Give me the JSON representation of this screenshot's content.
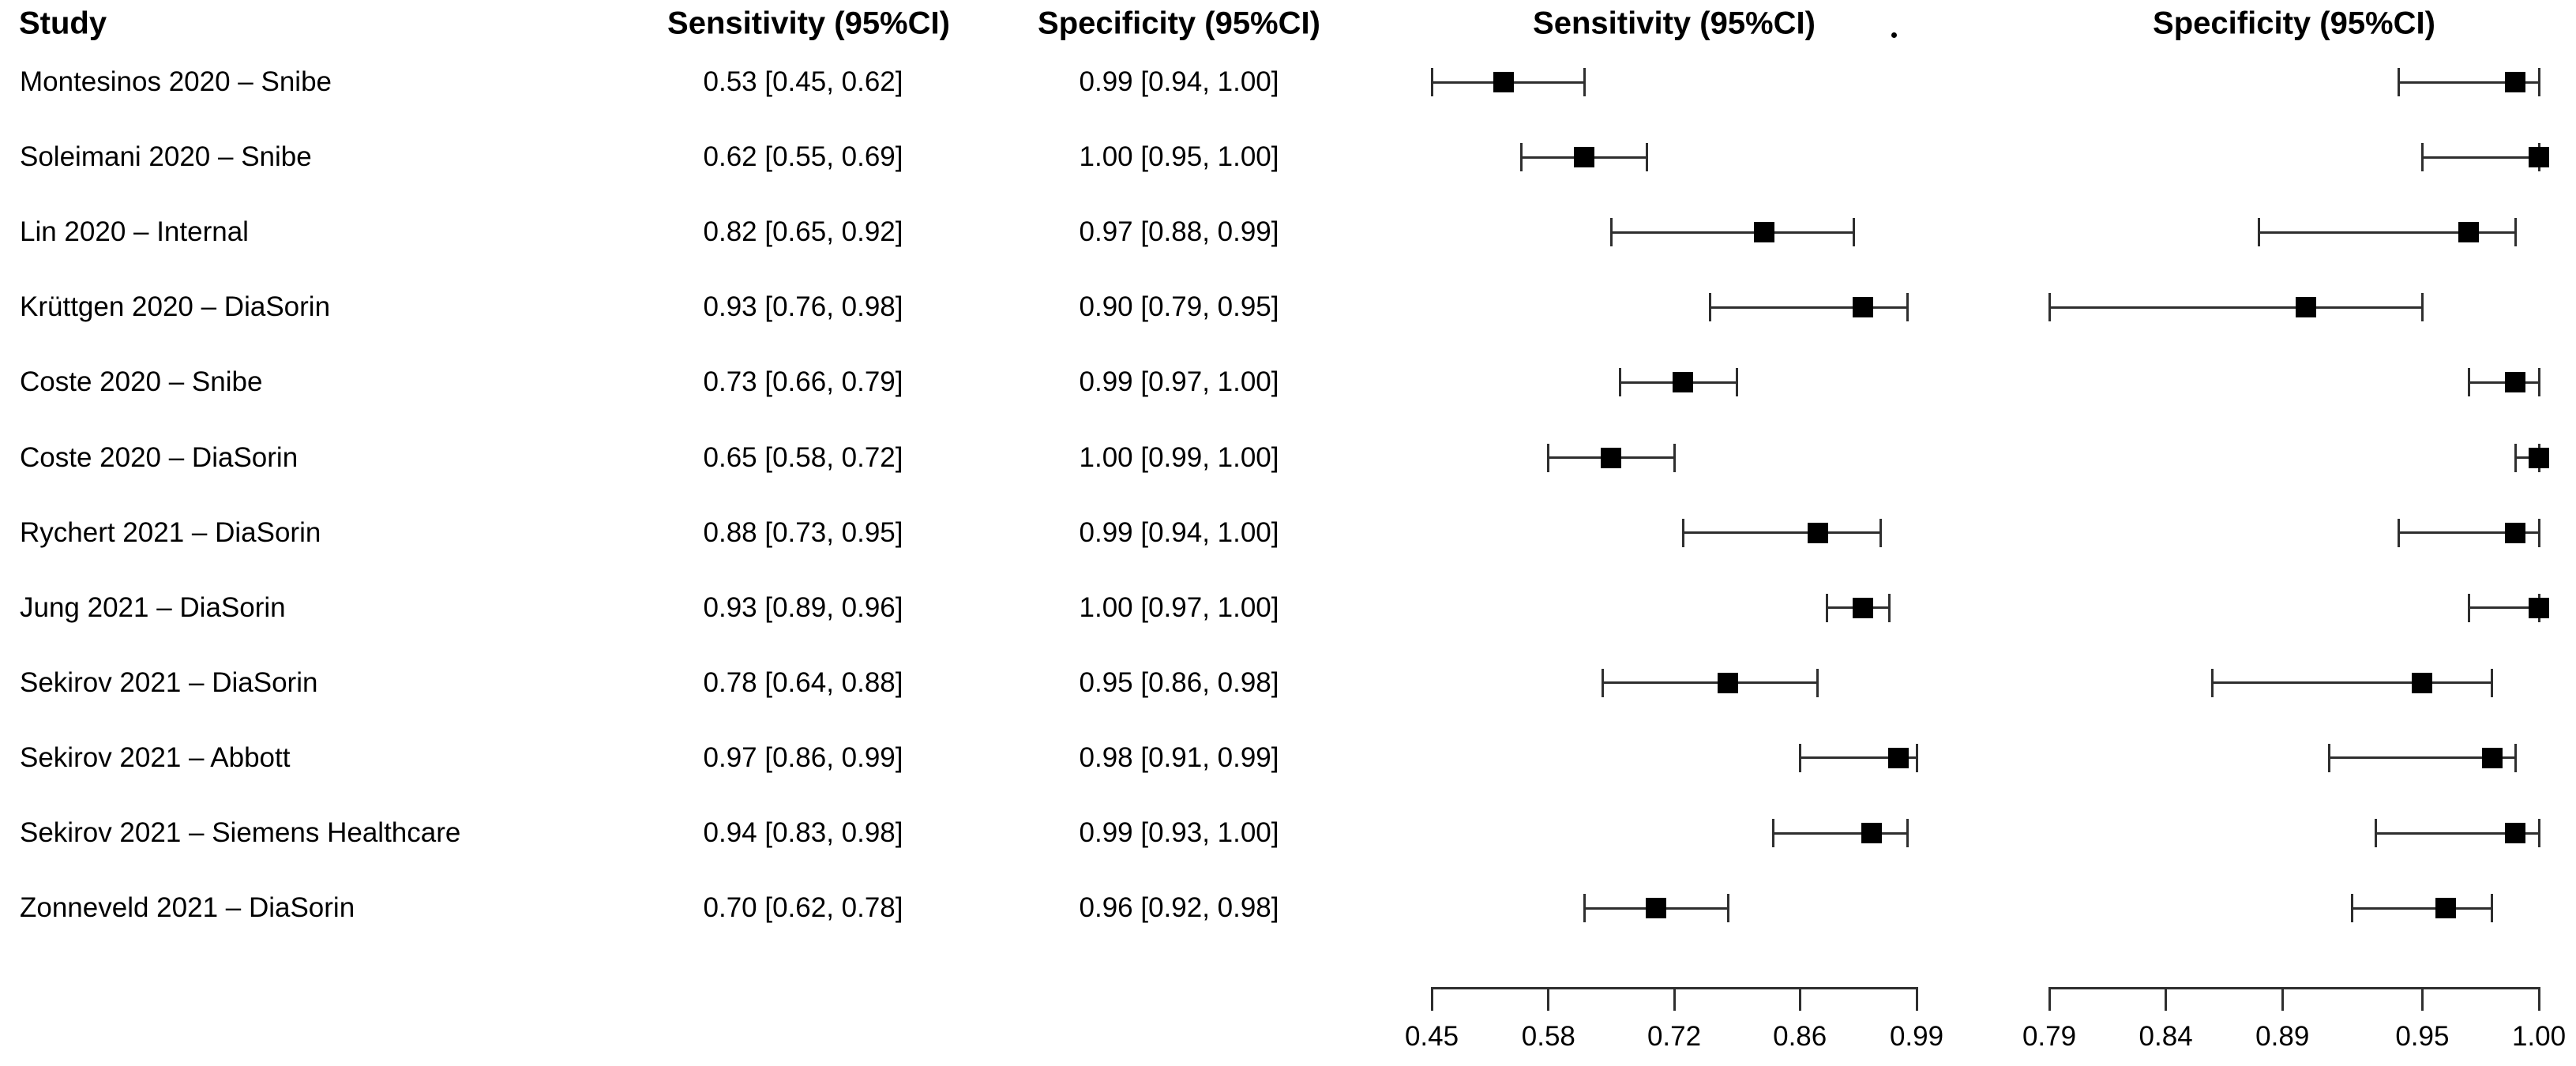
{
  "page": {
    "background": "#ffffff"
  },
  "columns": {
    "study_header": "Study",
    "sensitivity_header": "Sensitivity (95%CI)",
    "specificity_header": "Specificity (95%CI)",
    "sensitivity_plot_header": "Sensitivity (95%CI)",
    "specificity_plot_header": "Specificity (95%CI)",
    "stray_dot": "."
  },
  "colors": {
    "text": "#000000",
    "ci_line": "#2e2e2e",
    "marker": "#000000",
    "background": "#ffffff"
  },
  "chart_data": {
    "type": "forest",
    "title": "",
    "description": "Paired forest plot of diagnostic sensitivity and specificity with 95% confidence intervals per study",
    "legend_position": "none",
    "grid": false,
    "columns": [
      "Study",
      "Sensitivity (95%CI)",
      "Specificity (95%CI)",
      "Sensitivity (95%CI)",
      "Specificity (95%CI)"
    ],
    "rows": [
      {
        "study": "Montesinos 2020 – Snibe",
        "sensitivity": {
          "label": "0.53 [0.45, 0.62]",
          "est": 0.53,
          "lo": 0.45,
          "hi": 0.62
        },
        "specificity": {
          "label": "0.99 [0.94, 1.00]",
          "est": 0.99,
          "lo": 0.94,
          "hi": 1.0
        }
      },
      {
        "study": "Soleimani 2020 – Snibe",
        "sensitivity": {
          "label": "0.62 [0.55, 0.69]",
          "est": 0.62,
          "lo": 0.55,
          "hi": 0.69
        },
        "specificity": {
          "label": "1.00 [0.95, 1.00]",
          "est": 1.0,
          "lo": 0.95,
          "hi": 1.0
        }
      },
      {
        "study": "Lin 2020 – Internal",
        "sensitivity": {
          "label": "0.82 [0.65, 0.92]",
          "est": 0.82,
          "lo": 0.65,
          "hi": 0.92
        },
        "specificity": {
          "label": "0.97 [0.88, 0.99]",
          "est": 0.97,
          "lo": 0.88,
          "hi": 0.99
        }
      },
      {
        "study": "Krüttgen 2020 – DiaSorin",
        "sensitivity": {
          "label": "0.93 [0.76, 0.98]",
          "est": 0.93,
          "lo": 0.76,
          "hi": 0.98
        },
        "specificity": {
          "label": "0.90 [0.79, 0.95]",
          "est": 0.9,
          "lo": 0.79,
          "hi": 0.95
        }
      },
      {
        "study": "Coste 2020 – Snibe",
        "sensitivity": {
          "label": "0.73 [0.66, 0.79]",
          "est": 0.73,
          "lo": 0.66,
          "hi": 0.79
        },
        "specificity": {
          "label": "0.99 [0.97, 1.00]",
          "est": 0.99,
          "lo": 0.97,
          "hi": 1.0
        }
      },
      {
        "study": "Coste 2020 – DiaSorin",
        "sensitivity": {
          "label": "0.65 [0.58, 0.72]",
          "est": 0.65,
          "lo": 0.58,
          "hi": 0.72
        },
        "specificity": {
          "label": "1.00 [0.99, 1.00]",
          "est": 1.0,
          "lo": 0.99,
          "hi": 1.0
        }
      },
      {
        "study": "Rychert 2021 – DiaSorin",
        "sensitivity": {
          "label": "0.88 [0.73, 0.95]",
          "est": 0.88,
          "lo": 0.73,
          "hi": 0.95
        },
        "specificity": {
          "label": "0.99 [0.94, 1.00]",
          "est": 0.99,
          "lo": 0.94,
          "hi": 1.0
        }
      },
      {
        "study": "Jung 2021 – DiaSorin",
        "sensitivity": {
          "label": "0.93 [0.89, 0.96]",
          "est": 0.93,
          "lo": 0.89,
          "hi": 0.96
        },
        "specificity": {
          "label": "1.00 [0.97, 1.00]",
          "est": 1.0,
          "lo": 0.97,
          "hi": 1.0
        }
      },
      {
        "study": "Sekirov 2021 – DiaSorin",
        "sensitivity": {
          "label": "0.78 [0.64, 0.88]",
          "est": 0.78,
          "lo": 0.64,
          "hi": 0.88
        },
        "specificity": {
          "label": "0.95 [0.86, 0.98]",
          "est": 0.95,
          "lo": 0.86,
          "hi": 0.98
        }
      },
      {
        "study": "Sekirov 2021 – Abbott",
        "sensitivity": {
          "label": "0.97 [0.86, 0.99]",
          "est": 0.97,
          "lo": 0.86,
          "hi": 0.99
        },
        "specificity": {
          "label": "0.98 [0.91, 0.99]",
          "est": 0.98,
          "lo": 0.91,
          "hi": 0.99
        }
      },
      {
        "study": "Sekirov 2021 – Siemens Healthcare",
        "sensitivity": {
          "label": "0.94 [0.83, 0.98]",
          "est": 0.94,
          "lo": 0.83,
          "hi": 0.98
        },
        "specificity": {
          "label": "0.99 [0.93, 1.00]",
          "est": 0.99,
          "lo": 0.93,
          "hi": 1.0
        }
      },
      {
        "study": "Zonneveld 2021 – DiaSorin",
        "sensitivity": {
          "label": "0.70 [0.62, 0.78]",
          "est": 0.7,
          "lo": 0.62,
          "hi": 0.78
        },
        "specificity": {
          "label": "0.96 [0.92, 0.98]",
          "est": 0.96,
          "lo": 0.92,
          "hi": 0.98
        }
      }
    ],
    "sensitivity_axis": {
      "range": [
        0.45,
        0.99
      ],
      "ticks": [
        {
          "v": 0.45,
          "label": "0.45"
        },
        {
          "v": 0.58,
          "label": "0.58"
        },
        {
          "v": 0.72,
          "label": "0.72"
        },
        {
          "v": 0.86,
          "label": "0.86"
        },
        {
          "v": 0.99,
          "label": "0.99"
        }
      ]
    },
    "specificity_axis": {
      "range": [
        0.79,
        1.0
      ],
      "ticks": [
        {
          "v": 0.79,
          "label": "0.79"
        },
        {
          "v": 0.84,
          "label": "0.84"
        },
        {
          "v": 0.89,
          "label": "0.89"
        },
        {
          "v": 0.95,
          "label": "0.95"
        },
        {
          "v": 1.0,
          "label": "1.00"
        }
      ]
    }
  }
}
